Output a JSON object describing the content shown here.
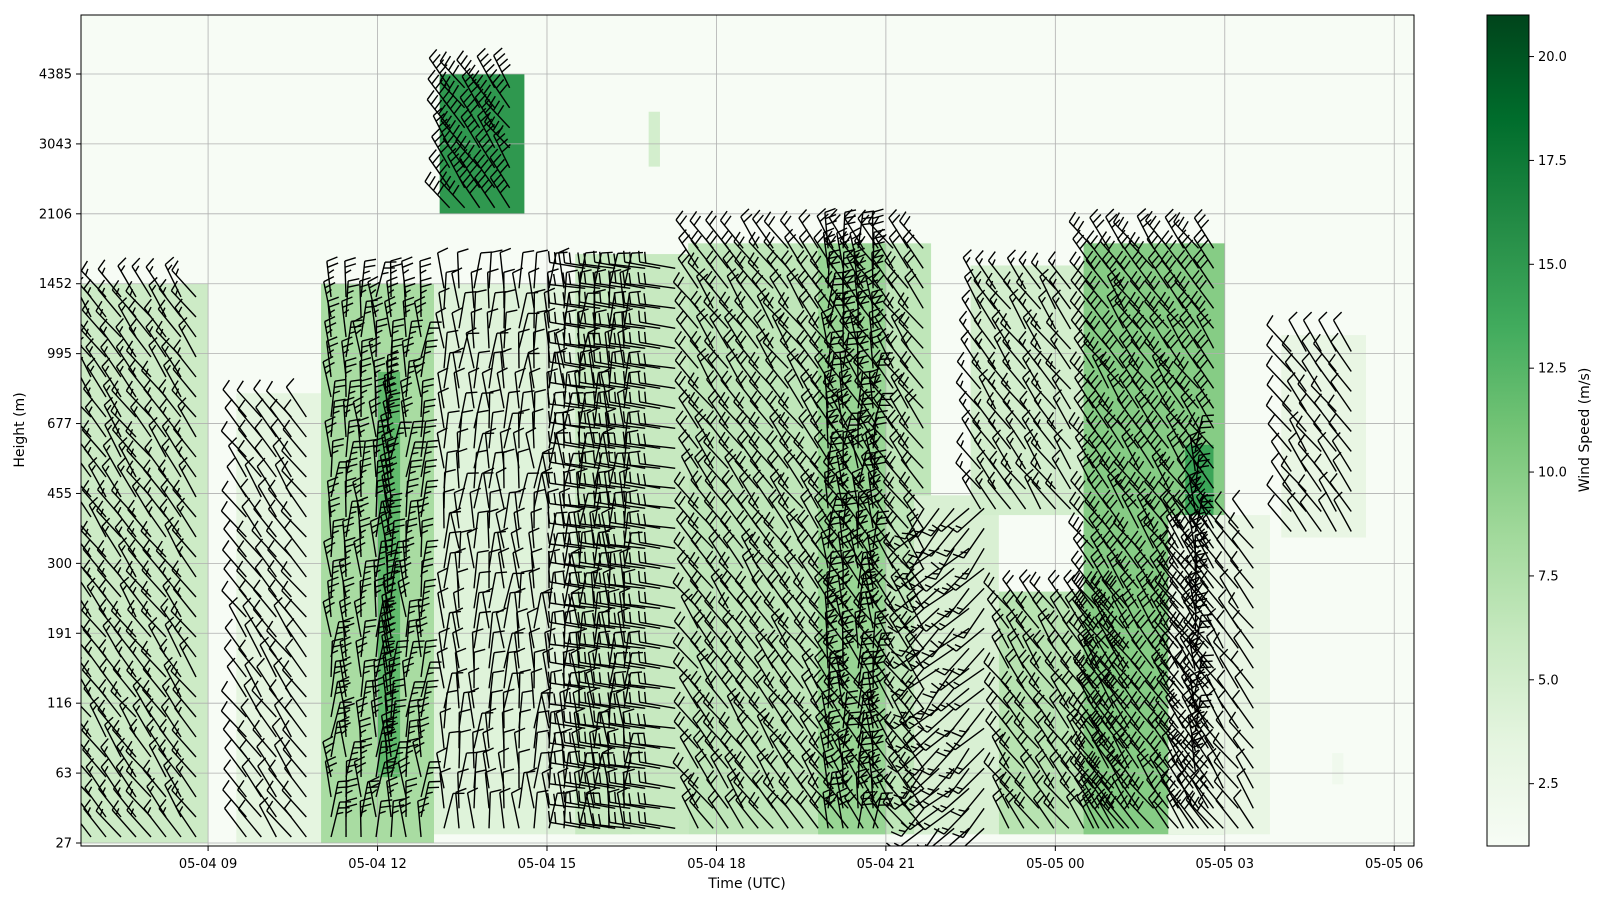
{
  "chart_data": {
    "type": "heatmap",
    "xlabel": "Time (UTC)",
    "ylabel": "Height (m)",
    "colorbar_label": "Wind Speed (m/s)",
    "colormap": "Greens",
    "x_ticks": [
      "05-04 09",
      "05-04 12",
      "05-04 15",
      "05-04 18",
      "05-04 21",
      "05-05 00",
      "05-05 03",
      "05-05 06"
    ],
    "x_tick_hours": [
      9,
      12,
      15,
      18,
      21,
      24,
      27,
      30
    ],
    "x_range_hours": [
      6.75,
      30.35
    ],
    "y_ticks": [
      "27",
      "63",
      "116",
      "191",
      "300",
      "455",
      "677",
      "995",
      "1452",
      "2106",
      "3043",
      "4385"
    ],
    "colorbar_ticks": [
      "2.5",
      "5.0",
      "7.5",
      "10.0",
      "12.5",
      "15.0",
      "17.5",
      "20.0"
    ],
    "colorbar_tick_values": [
      2.5,
      5.0,
      7.5,
      10.0,
      12.5,
      15.0,
      17.5,
      20.0
    ],
    "colorbar_range": [
      1.0,
      21.0
    ],
    "grid": true,
    "wind_regions": [
      {
        "start": 6.75,
        "end": 9.0,
        "bottom": 27,
        "top": 1452,
        "speed": 5.5,
        "direction": "north-west"
      },
      {
        "start": 9.5,
        "end": 11.0,
        "bottom": 27,
        "top": 800,
        "speed": 3.5,
        "direction": "north-west"
      },
      {
        "start": 11.0,
        "end": 13.0,
        "bottom": 27,
        "top": 1452,
        "speed": 8.0,
        "direction": "north"
      },
      {
        "start": 12.0,
        "end": 12.4,
        "bottom": 60,
        "top": 900,
        "speed": 12.0,
        "direction": "north"
      },
      {
        "start": 13.1,
        "end": 14.6,
        "bottom": 2106,
        "top": 4385,
        "speed": 15.0,
        "direction": "north-west"
      },
      {
        "start": 13.0,
        "end": 16.5,
        "bottom": 30,
        "top": 1452,
        "speed": 4.0,
        "direction": "north"
      },
      {
        "start": 15.5,
        "end": 17.5,
        "bottom": 30,
        "top": 1700,
        "speed": 6.0,
        "direction": "west"
      },
      {
        "start": 16.8,
        "end": 17.0,
        "bottom": 2700,
        "top": 3600,
        "speed": 5.0,
        "direction": "north-west"
      },
      {
        "start": 17.5,
        "end": 21.8,
        "bottom": 30,
        "top": 1800,
        "speed": 6.5,
        "direction": "north-west"
      },
      {
        "start": 19.8,
        "end": 21.0,
        "bottom": 30,
        "top": 1800,
        "speed": 9.0,
        "direction": "north"
      },
      {
        "start": 21.5,
        "end": 23.0,
        "bottom": 30,
        "top": 450,
        "speed": 4.5,
        "direction": "south-west"
      },
      {
        "start": 22.5,
        "end": 24.5,
        "bottom": 400,
        "top": 1600,
        "speed": 5.0,
        "direction": "north-west"
      },
      {
        "start": 23.0,
        "end": 25.5,
        "bottom": 30,
        "top": 250,
        "speed": 7.0,
        "direction": "north-west"
      },
      {
        "start": 24.5,
        "end": 27.0,
        "bottom": 30,
        "top": 1800,
        "speed": 10.0,
        "direction": "north-west"
      },
      {
        "start": 26.3,
        "end": 26.8,
        "bottom": 60,
        "top": 600,
        "speed": 14.0,
        "direction": "north"
      },
      {
        "start": 26.0,
        "end": 27.8,
        "bottom": 30,
        "top": 400,
        "speed": 3.0,
        "direction": "north-west"
      },
      {
        "start": 28.0,
        "end": 29.5,
        "bottom": 350,
        "top": 1100,
        "speed": 3.0,
        "direction": "north-west"
      },
      {
        "start": 28.9,
        "end": 29.1,
        "bottom": 55,
        "top": 75,
        "speed": 2.0,
        "direction": "north"
      }
    ]
  }
}
